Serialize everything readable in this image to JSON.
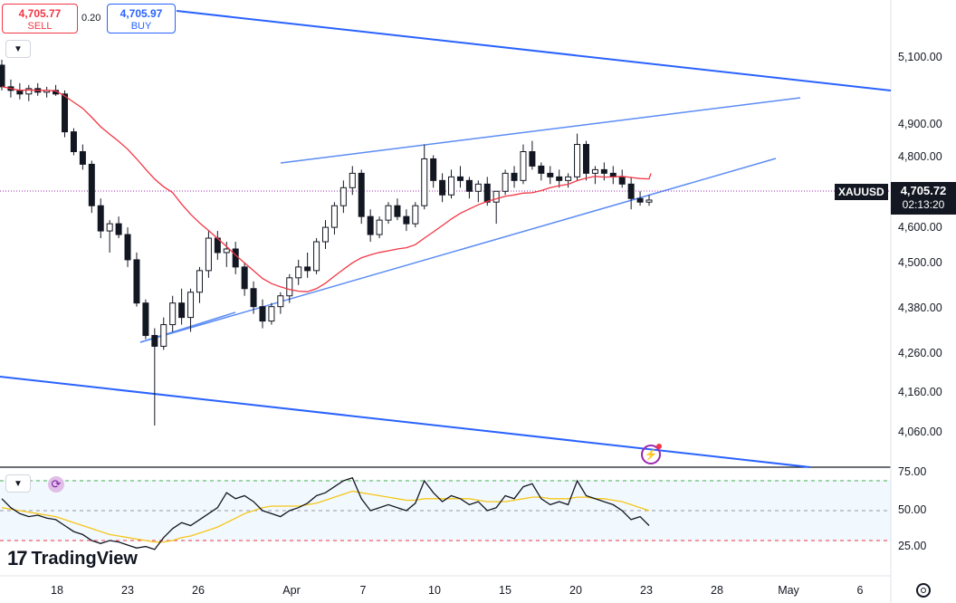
{
  "trade": {
    "sell_price": "4,705.77",
    "sell_label": "SELL",
    "buy_price": "4,705.97",
    "buy_label": "BUY",
    "spread": "0.20"
  },
  "symbol": "XAUUSD",
  "last_price": "4,705.72",
  "countdown": "02:13:20",
  "brand": "TradingView",
  "colors": {
    "up": "#ffffff",
    "down": "#131722",
    "ma": "#f23645",
    "trendline_dark": "#2962ff",
    "trendline_light": "#5b8cf5",
    "rsi": "#131722",
    "rsi_ma": "#f5c518"
  },
  "icons": [
    "chevron-down-icon",
    "sync-icon",
    "lightning-icon",
    "settings-icon"
  ],
  "chart_data": {
    "type": "candlestick",
    "y_ticks": [
      "5,100.00",
      "4,900.00",
      "4,800.00",
      "4,600.00",
      "4,500.00",
      "4,380.00",
      "4,260.00",
      "4,160.00",
      "4,060.00"
    ],
    "x_ticks": [
      "18",
      "23",
      "26",
      "Apr",
      "7",
      "10",
      "15",
      "20",
      "23",
      "28",
      "May",
      "6"
    ],
    "ohlc": [
      [
        5080,
        5095,
        5010,
        5020
      ],
      [
        5020,
        5040,
        4990,
        5010
      ],
      [
        5010,
        5030,
        4985,
        5000
      ],
      [
        5000,
        5025,
        4980,
        5015
      ],
      [
        5015,
        5030,
        4995,
        5005
      ],
      [
        5005,
        5020,
        4990,
        5010
      ],
      [
        5010,
        5025,
        4995,
        5000
      ],
      [
        5000,
        5010,
        4880,
        4895
      ],
      [
        4895,
        4905,
        4830,
        4840
      ],
      [
        4840,
        4860,
        4790,
        4805
      ],
      [
        4805,
        4815,
        4670,
        4690
      ],
      [
        4690,
        4710,
        4600,
        4620
      ],
      [
        4620,
        4650,
        4560,
        4640
      ],
      [
        4640,
        4660,
        4600,
        4610
      ],
      [
        4610,
        4630,
        4520,
        4540
      ],
      [
        4540,
        4560,
        4410,
        4420
      ],
      [
        4420,
        4430,
        4320,
        4330
      ],
      [
        4330,
        4350,
        4080,
        4300
      ],
      [
        4300,
        4380,
        4290,
        4360
      ],
      [
        4360,
        4440,
        4340,
        4420
      ],
      [
        4420,
        4460,
        4360,
        4380
      ],
      [
        4380,
        4460,
        4340,
        4450
      ],
      [
        4450,
        4520,
        4420,
        4510
      ],
      [
        4510,
        4620,
        4490,
        4600
      ],
      [
        4600,
        4620,
        4540,
        4560
      ],
      [
        4560,
        4590,
        4520,
        4570
      ],
      [
        4570,
        4590,
        4500,
        4520
      ],
      [
        4520,
        4530,
        4440,
        4460
      ],
      [
        4460,
        4480,
        4390,
        4410
      ],
      [
        4410,
        4430,
        4350,
        4370
      ],
      [
        4370,
        4420,
        4360,
        4410
      ],
      [
        4410,
        4450,
        4390,
        4440
      ],
      [
        4440,
        4500,
        4420,
        4490
      ],
      [
        4490,
        4540,
        4470,
        4520
      ],
      [
        4520,
        4560,
        4490,
        4510
      ],
      [
        4510,
        4600,
        4500,
        4590
      ],
      [
        4590,
        4650,
        4570,
        4630
      ],
      [
        4630,
        4700,
        4610,
        4690
      ],
      [
        4690,
        4760,
        4670,
        4740
      ],
      [
        4740,
        4800,
        4720,
        4780
      ],
      [
        4780,
        4790,
        4640,
        4660
      ],
      [
        4660,
        4680,
        4590,
        4610
      ],
      [
        4610,
        4660,
        4600,
        4650
      ],
      [
        4650,
        4700,
        4640,
        4690
      ],
      [
        4690,
        4710,
        4650,
        4660
      ],
      [
        4660,
        4680,
        4620,
        4640
      ],
      [
        4640,
        4700,
        4630,
        4690
      ],
      [
        4690,
        4860,
        4680,
        4820
      ],
      [
        4820,
        4830,
        4740,
        4760
      ],
      [
        4760,
        4780,
        4700,
        4720
      ],
      [
        4720,
        4790,
        4710,
        4770
      ],
      [
        4770,
        4800,
        4740,
        4760
      ],
      [
        4760,
        4770,
        4710,
        4730
      ],
      [
        4730,
        4760,
        4700,
        4750
      ],
      [
        4750,
        4770,
        4690,
        4700
      ],
      [
        4700,
        4720,
        4640,
        4730
      ],
      [
        4730,
        4790,
        4720,
        4780
      ],
      [
        4780,
        4800,
        4740,
        4760
      ],
      [
        4760,
        4860,
        4750,
        4840
      ],
      [
        4840,
        4870,
        4790,
        4800
      ],
      [
        4800,
        4810,
        4760,
        4780
      ],
      [
        4780,
        4800,
        4750,
        4770
      ],
      [
        4770,
        4790,
        4740,
        4760
      ],
      [
        4760,
        4780,
        4740,
        4770
      ],
      [
        4770,
        4890,
        4760,
        4860
      ],
      [
        4860,
        4870,
        4760,
        4780
      ],
      [
        4780,
        4800,
        4750,
        4790
      ],
      [
        4790,
        4810,
        4760,
        4780
      ],
      [
        4780,
        4800,
        4750,
        4770
      ],
      [
        4770,
        4790,
        4740,
        4750
      ],
      [
        4750,
        4770,
        4680,
        4710
      ],
      [
        4710,
        4730,
        4690,
        4700
      ],
      [
        4700,
        4720,
        4690,
        4705.72
      ]
    ],
    "ma_last": 4780,
    "rsi_panel": {
      "y_ticks": [
        "75.00",
        "50.00",
        "25.00"
      ],
      "levels": [
        70,
        50,
        30
      ],
      "rsi": [
        58,
        52,
        48,
        46,
        47,
        45,
        44,
        40,
        36,
        34,
        30,
        28,
        30,
        29,
        27,
        25,
        26,
        24,
        32,
        38,
        42,
        40,
        44,
        48,
        52,
        62,
        58,
        60,
        56,
        50,
        48,
        46,
        50,
        52,
        55,
        60,
        62,
        66,
        70,
        72,
        58,
        50,
        52,
        54,
        52,
        50,
        55,
        70,
        62,
        56,
        60,
        58,
        54,
        56,
        50,
        52,
        60,
        58,
        66,
        68,
        58,
        54,
        56,
        54,
        70,
        60,
        58,
        56,
        54,
        50,
        44,
        46,
        40
      ],
      "rsi_ma": [
        52,
        51,
        50,
        49,
        48,
        47,
        46,
        44,
        42,
        40,
        38,
        36,
        34,
        33,
        32,
        31,
        30,
        29,
        29,
        30,
        32,
        33,
        35,
        37,
        39,
        42,
        45,
        48,
        50,
        52,
        53,
        53,
        53,
        53,
        54,
        55,
        57,
        59,
        61,
        63,
        62,
        61,
        60,
        59,
        58,
        57,
        57,
        58,
        58,
        58,
        58,
        58,
        58,
        57,
        56,
        56,
        56,
        57,
        58,
        59,
        59,
        58,
        58,
        58,
        59,
        59,
        58,
        58,
        57,
        56,
        54,
        52,
        50
      ]
    }
  }
}
